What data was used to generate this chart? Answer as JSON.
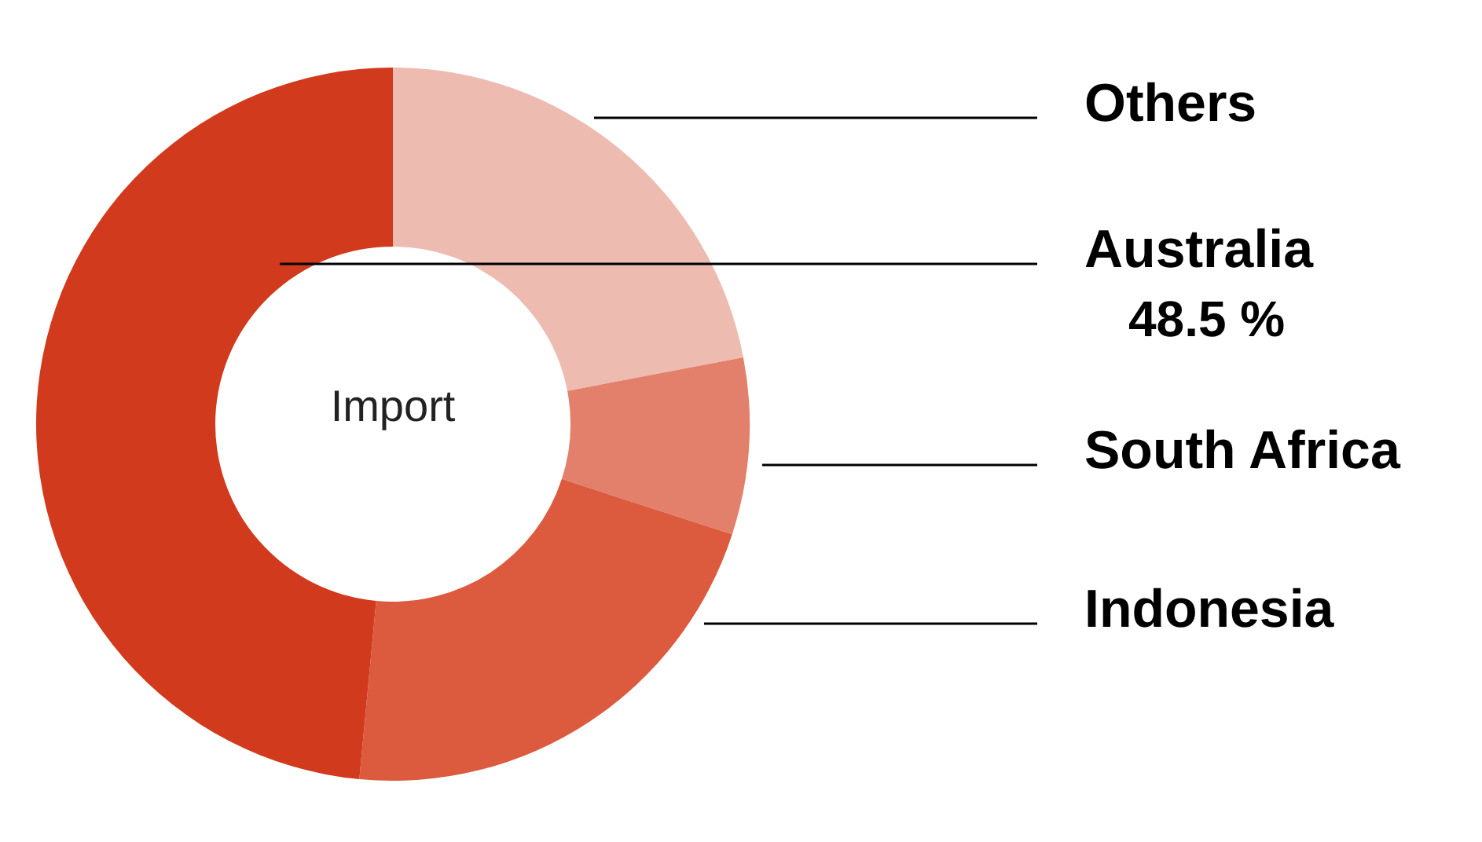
{
  "chart_data": {
    "type": "donut",
    "annotations": [
      "Import"
    ],
    "categories": [
      "Others",
      "South Africa",
      "Indonesia",
      "Australia"
    ],
    "values": [
      22,
      8,
      21.5,
      48.5
    ],
    "colors": [
      "#eebbb0",
      "#e3806b",
      "#dc5a3e",
      "#d13a1c"
    ],
    "value_labels": [
      null,
      null,
      null,
      "48.5 %"
    ]
  }
}
